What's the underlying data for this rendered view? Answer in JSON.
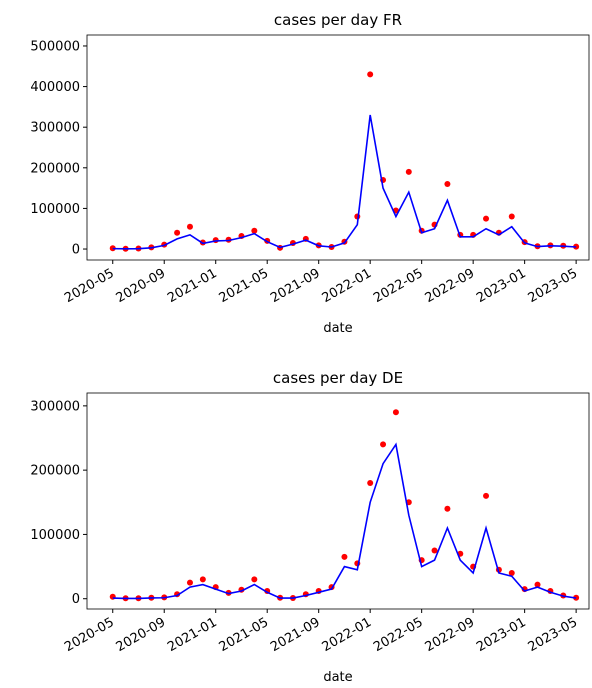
{
  "chart_data": [
    {
      "type": "line",
      "title": "cases per day FR",
      "xlabel": "date",
      "x": [
        "2020-05",
        "2020-06",
        "2020-07",
        "2020-08",
        "2020-09",
        "2020-10",
        "2020-11",
        "2020-12",
        "2021-01",
        "2021-02",
        "2021-03",
        "2021-04",
        "2021-05",
        "2021-06",
        "2021-07",
        "2021-08",
        "2021-09",
        "2021-10",
        "2021-11",
        "2021-12",
        "2022-01",
        "2022-02",
        "2022-03",
        "2022-04",
        "2022-05",
        "2022-06",
        "2022-07",
        "2022-08",
        "2022-09",
        "2022-10",
        "2022-11",
        "2022-12",
        "2023-01",
        "2023-02",
        "2023-03",
        "2023-04",
        "2023-05"
      ],
      "xlim": [
        "2020-03",
        "2023-06"
      ],
      "xticks": [
        "2020-05",
        "2020-09",
        "2021-01",
        "2021-05",
        "2021-09",
        "2022-01",
        "2022-05",
        "2022-09",
        "2023-01",
        "2023-05"
      ],
      "ylim": [
        -27000,
        527000
      ],
      "yticks": [
        0,
        100000,
        200000,
        300000,
        400000,
        500000
      ],
      "series": [
        {
          "color": "#ff0000",
          "mode": "markers",
          "values": [
            2000,
            800,
            1200,
            4000,
            11000,
            40000,
            55000,
            16000,
            22000,
            23000,
            32000,
            45000,
            20000,
            3000,
            15000,
            25000,
            9000,
            5000,
            18000,
            80000,
            430000,
            170000,
            95000,
            190000,
            45000,
            60000,
            160000,
            35000,
            35000,
            75000,
            40000,
            80000,
            17000,
            7000,
            9000,
            8000,
            6000
          ]
        },
        {
          "color": "#0000ff",
          "mode": "line",
          "values": [
            1000,
            500,
            800,
            3000,
            9000,
            25000,
            35000,
            14000,
            20000,
            21000,
            28000,
            38000,
            18000,
            4000,
            12000,
            22000,
            8000,
            5000,
            15000,
            60000,
            330000,
            150000,
            80000,
            140000,
            40000,
            50000,
            120000,
            30000,
            30000,
            50000,
            35000,
            55000,
            15000,
            6000,
            8000,
            7000,
            5000
          ]
        }
      ]
    },
    {
      "type": "line",
      "title": "cases per day DE",
      "xlabel": "date",
      "x": [
        "2020-05",
        "2020-06",
        "2020-07",
        "2020-08",
        "2020-09",
        "2020-10",
        "2020-11",
        "2020-12",
        "2021-01",
        "2021-02",
        "2021-03",
        "2021-04",
        "2021-05",
        "2021-06",
        "2021-07",
        "2021-08",
        "2021-09",
        "2021-10",
        "2021-11",
        "2021-12",
        "2022-01",
        "2022-02",
        "2022-03",
        "2022-04",
        "2022-05",
        "2022-06",
        "2022-07",
        "2022-08",
        "2022-09",
        "2022-10",
        "2022-11",
        "2022-12",
        "2023-01",
        "2023-02",
        "2023-03",
        "2023-04",
        "2023-05"
      ],
      "xlim": [
        "2020-03",
        "2023-06"
      ],
      "xticks": [
        "2020-05",
        "2020-09",
        "2021-01",
        "2021-05",
        "2021-09",
        "2022-01",
        "2022-05",
        "2022-09",
        "2023-01",
        "2023-05"
      ],
      "ylim": [
        -16000,
        320000
      ],
      "yticks": [
        0,
        100000,
        200000,
        300000
      ],
      "series": [
        {
          "color": "#ff0000",
          "mode": "markers",
          "values": [
            3000,
            800,
            700,
            1500,
            2000,
            7000,
            25000,
            30000,
            18000,
            9000,
            14000,
            30000,
            12000,
            1500,
            1200,
            7000,
            12000,
            18000,
            65000,
            55000,
            180000,
            240000,
            290000,
            150000,
            60000,
            75000,
            140000,
            70000,
            50000,
            160000,
            45000,
            40000,
            15000,
            22000,
            12000,
            5000,
            1500
          ]
        },
        {
          "color": "#0000ff",
          "mode": "line",
          "values": [
            1000,
            500,
            500,
            1200,
            1500,
            5000,
            18000,
            22000,
            15000,
            8000,
            12000,
            22000,
            10000,
            1000,
            1000,
            5000,
            10000,
            15000,
            50000,
            45000,
            150000,
            210000,
            240000,
            130000,
            50000,
            60000,
            110000,
            60000,
            40000,
            110000,
            40000,
            35000,
            12000,
            18000,
            10000,
            4000,
            1000
          ]
        }
      ]
    }
  ]
}
